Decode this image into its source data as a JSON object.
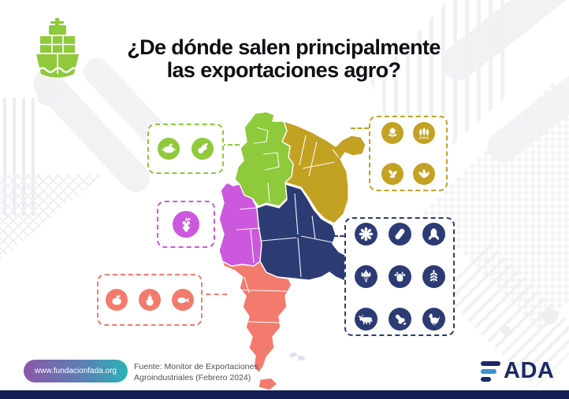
{
  "header": {
    "logo_icon": "cargo-ship-icon",
    "title_line1": "¿De dónde salen principalmente",
    "title_line2": "las exportaciones agro?"
  },
  "colors": {
    "noa": "#8fc93c",
    "nea": "#c3a123",
    "cuyo": "#cb58dd",
    "pampeana": "#2d3b75",
    "patagonia": "#f27b6d",
    "malvinas_gray": "#dde1e9",
    "title_text": "#0f0f13",
    "bottom_bar": "#131e55",
    "fada_navy": "#1b2a66",
    "fada_blue": "#3d8fd3",
    "pill_gradient_start": "#8a58a9",
    "pill_gradient_end": "#2bb2b4"
  },
  "map": {
    "regions": [
      {
        "id": "noa",
        "color": "#8fc93c"
      },
      {
        "id": "nea",
        "color": "#c3a123"
      },
      {
        "id": "cuyo",
        "color": "#cb58dd"
      },
      {
        "id": "pampeana",
        "color": "#2d3b75"
      },
      {
        "id": "patagonia",
        "color": "#f27b6d"
      },
      {
        "id": "islas-malvinas",
        "color": "#dde1e9"
      }
    ]
  },
  "icon_groups": [
    {
      "region": "noa",
      "icons": [
        "lemon",
        "peanut"
      ]
    },
    {
      "region": "nea",
      "icons": [
        "cotton-flower",
        "trees",
        "seeds",
        "tobacco"
      ]
    },
    {
      "region": "cuyo",
      "icons": [
        "grapes"
      ]
    },
    {
      "region": "pampeana",
      "icons": [
        "sunflower",
        "soybean",
        "corn",
        "wheat",
        "dairy-cow",
        "grain-plant",
        "beef-cattle",
        "peanuts",
        "chicken"
      ]
    },
    {
      "region": "patagonia",
      "icons": [
        "apple",
        "pear",
        "fish"
      ]
    }
  ],
  "footer": {
    "website": "www.fundacionfada.org",
    "source_line1": "Fuente: Monitor de Exportaciones",
    "source_line2": "Agroindustriales (Febrero 2024)",
    "brand": "FADA",
    "brand_letters_after_f": "ADA"
  }
}
